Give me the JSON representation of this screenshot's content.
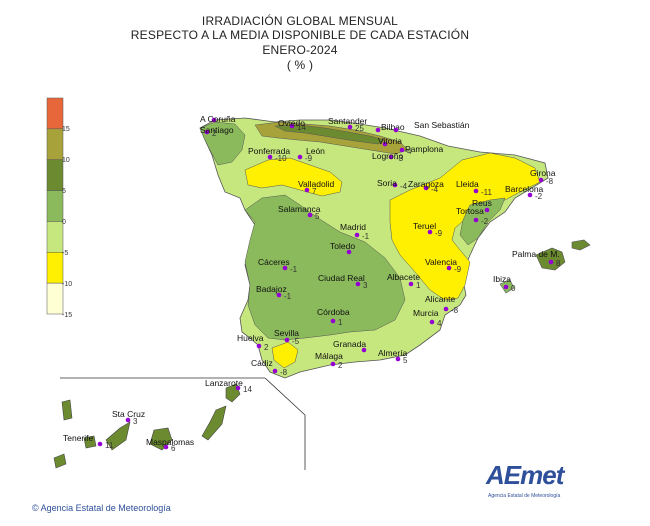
{
  "title": {
    "line1": "IRRADIACIÓN  GLOBAL MENSUAL",
    "line2": "RESPECTO  A LA MEDIA DISPONIBLE DE CADA ESTACIÓN",
    "line3": "ENERO-2024",
    "line4": "( % )"
  },
  "legend": {
    "colors": [
      "#e8673a",
      "#a7a33a",
      "#6c8b30",
      "#8aba5c",
      "#c6e77e",
      "#ffef00",
      "#ffffd4"
    ],
    "labels": [
      "15",
      "10",
      "5",
      "0",
      "-5",
      "-10",
      "-15"
    ]
  },
  "stations": [
    {
      "name": "A Coruña",
      "value": ""
    },
    {
      "name": "Santiago",
      "value": "2"
    },
    {
      "name": "Oviedo",
      "value": "14"
    },
    {
      "name": "Santander",
      "value": "25"
    },
    {
      "name": "Bilbao",
      "value": ""
    },
    {
      "name": "San Sebastián",
      "value": ""
    },
    {
      "name": "Vitoria",
      "value": ""
    },
    {
      "name": "Pamplona",
      "value": "4"
    },
    {
      "name": "Ponferrada",
      "value": "-10"
    },
    {
      "name": "León",
      "value": "-9"
    },
    {
      "name": "Logroño",
      "value": "-3"
    },
    {
      "name": "Valladolid",
      "value": "7"
    },
    {
      "name": "Soria",
      "value": "-4"
    },
    {
      "name": "Zaragoza",
      "value": "-4"
    },
    {
      "name": "Lleida",
      "value": "-11"
    },
    {
      "name": "Girona",
      "value": "-8"
    },
    {
      "name": "Barcelona",
      "value": "-2"
    },
    {
      "name": "Reus",
      "value": ""
    },
    {
      "name": "Tortosa",
      "value": "-2"
    },
    {
      "name": "Salamanca",
      "value": "5"
    },
    {
      "name": "Madrid",
      "value": "-1"
    },
    {
      "name": "Teruel",
      "value": "-9"
    },
    {
      "name": "Toledo",
      "value": ""
    },
    {
      "name": "Palma de M.",
      "value": "8"
    },
    {
      "name": "Cáceres",
      "value": "-1"
    },
    {
      "name": "Ciudad Real",
      "value": "3"
    },
    {
      "name": "Albacete",
      "value": "1"
    },
    {
      "name": "Valencia",
      "value": "-9"
    },
    {
      "name": "Ibiza",
      "value": "0"
    },
    {
      "name": "Badajoz",
      "value": "-1"
    },
    {
      "name": "Alicante",
      "value": "-8"
    },
    {
      "name": "Córdoba",
      "value": "1"
    },
    {
      "name": "Murcia",
      "value": "4"
    },
    {
      "name": "Sevilla",
      "value": "-5"
    },
    {
      "name": "Huelva",
      "value": "2"
    },
    {
      "name": "Granada",
      "value": ""
    },
    {
      "name": "Almería",
      "value": "5"
    },
    {
      "name": "Málaga",
      "value": "2"
    },
    {
      "name": "Cádiz",
      "value": "-8"
    },
    {
      "name": "Lanzarote",
      "value": "14"
    },
    {
      "name": "Sta Cruz",
      "value": "3"
    },
    {
      "name": "Tenerife",
      "value": "11"
    },
    {
      "name": "Maspalomas",
      "value": "6"
    }
  ],
  "footer": {
    "text": "Agencia Estatal de Meteorología",
    "copyright_symbol": "©"
  },
  "logo": {
    "main": "AEmet",
    "sub": "Agencia Estatal de Meteorología"
  }
}
